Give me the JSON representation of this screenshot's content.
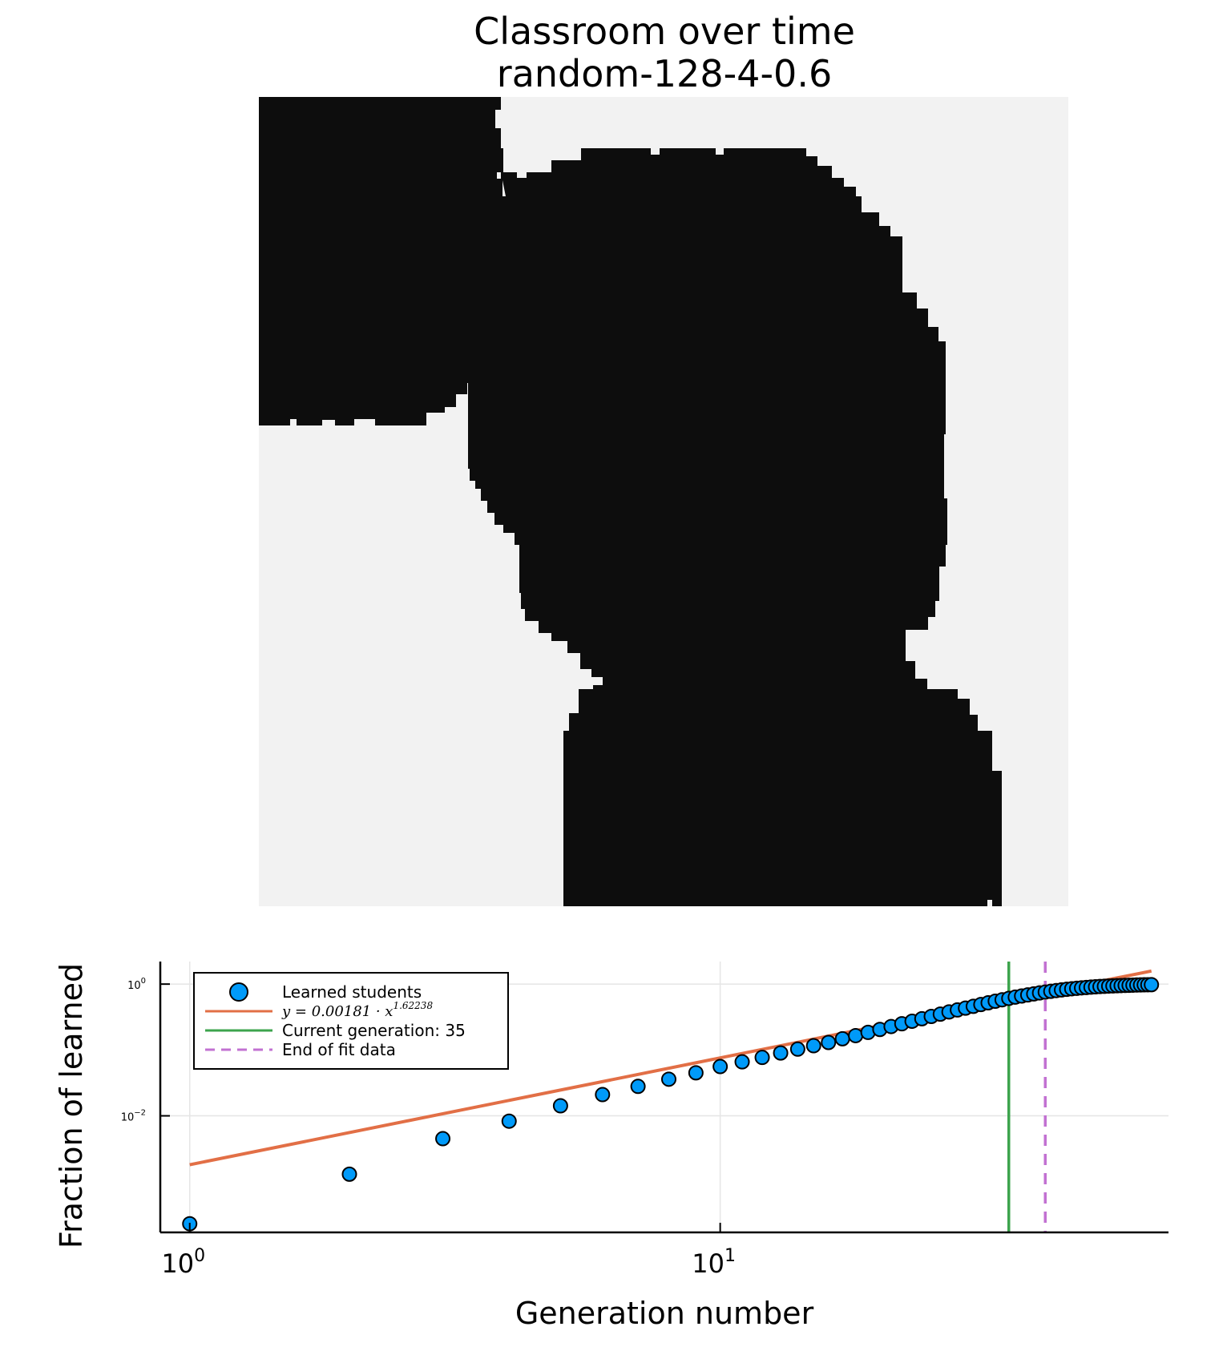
{
  "colors": {
    "learned": "#0d0d0d",
    "unlearned": "#f2f2f2",
    "scatter": "#009af9",
    "fit": "#e26f46",
    "current": "#3da44d",
    "end_fit": "#c271d2",
    "grid": "#e5e5e5"
  },
  "chart_data": [
    {
      "type": "heatmap",
      "title": "Classroom over time",
      "subtitle": "random-128-4-0.6",
      "grid_size": 128,
      "description_values": "binary classroom state (learned=dark, not learned=light)",
      "regions": [
        {
          "state": "learned",
          "shape": "upper-left block",
          "x": [
            0,
            38
          ],
          "y_rows": [
            0,
            52
          ]
        },
        {
          "state": "learned",
          "shape": "central blob",
          "x": [
            33,
            109
          ],
          "y_rows": [
            8,
            128
          ]
        }
      ]
    },
    {
      "type": "scatter",
      "xscale": "log10",
      "yscale": "log10",
      "xlabel": "Generation number",
      "ylabel": "Fraction of learned",
      "xlim": [
        0.88,
        70
      ],
      "ylim": [
        0.00017,
        2.2
      ],
      "xticks": [
        {
          "base": "10",
          "exp": "0",
          "value": 1
        },
        {
          "base": "10",
          "exp": "1",
          "value": 10
        }
      ],
      "yticks": [
        {
          "base": "10",
          "exp": "−2",
          "value": 0.01
        },
        {
          "base": "10",
          "exp": "0",
          "value": 1
        }
      ],
      "series": [
        {
          "name": "Learned students",
          "x": [
            1,
            2,
            3,
            4,
            5,
            6,
            7,
            8,
            9,
            10,
            11,
            12,
            13,
            14,
            15,
            16,
            17,
            18,
            19,
            20,
            21,
            22,
            23,
            24,
            25,
            26,
            27,
            28,
            29,
            30,
            31,
            32,
            33,
            34,
            35,
            36,
            37,
            38,
            39,
            40,
            41,
            42,
            43,
            44,
            45,
            46,
            47,
            48,
            49,
            50,
            51,
            52,
            53,
            54,
            55,
            56,
            57,
            58,
            59,
            60,
            61,
            62,
            63,
            64,
            65
          ],
          "y": [
            0.00023,
            0.0013,
            0.0045,
            0.0083,
            0.0142,
            0.021,
            0.028,
            0.036,
            0.045,
            0.056,
            0.066,
            0.077,
            0.09,
            0.103,
            0.116,
            0.13,
            0.148,
            0.165,
            0.185,
            0.205,
            0.227,
            0.25,
            0.273,
            0.298,
            0.323,
            0.35,
            0.378,
            0.405,
            0.432,
            0.46,
            0.49,
            0.52,
            0.55,
            0.578,
            0.607,
            0.635,
            0.66,
            0.685,
            0.71,
            0.735,
            0.757,
            0.778,
            0.798,
            0.817,
            0.834,
            0.85,
            0.864,
            0.877,
            0.889,
            0.9,
            0.91,
            0.919,
            0.927,
            0.934,
            0.94,
            0.946,
            0.951,
            0.956,
            0.96,
            0.964,
            0.968,
            0.972,
            0.975,
            0.978,
            0.98
          ]
        },
        {
          "name": "y = 0.00181 · x^1.62238",
          "fit_coefficient": 0.00181,
          "fit_exponent": 1.62238,
          "x_range": [
            1,
            65
          ]
        }
      ],
      "vlines": [
        {
          "name": "Current generation: 35",
          "x": 35,
          "style": "solid"
        },
        {
          "name": "End of fit data",
          "x": 41,
          "style": "dashed"
        }
      ],
      "legend": {
        "position": "top-left",
        "entries": [
          {
            "label": "Learned students",
            "kind": "marker"
          },
          {
            "label_math_base": "y = 0.00181 · x",
            "label_math_exp": "1.62238",
            "kind": "line"
          },
          {
            "label": "Current generation: 35",
            "kind": "line"
          },
          {
            "label": "End of fit data",
            "kind": "dashed"
          }
        ]
      }
    }
  ]
}
